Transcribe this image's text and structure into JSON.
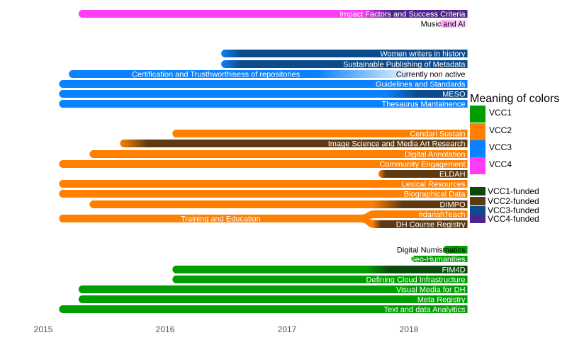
{
  "colors": {
    "VCC1": "#009e00",
    "VCC2": "#ff8000",
    "VCC3": "#0a82ff",
    "VCC4": "#ff3cf5",
    "VCC1-funded": "#0a4a0a",
    "VCC2-funded": "#5e3a12",
    "VCC3-funded": "#0d4c8c",
    "VCC4-funded": "#4b248c"
  },
  "chart_data": {
    "type": "timeline",
    "xlim": [
      2015.0,
      2018.5
    ],
    "x_ticks": [
      "2015",
      "2016",
      "2017",
      "2018"
    ],
    "grid": false,
    "legend": {
      "title": "Meaning of colors",
      "placement": "right",
      "items": [
        "VCC1",
        "VCC2",
        "VCC3",
        "VCC4"
      ],
      "funded_items": [
        "VCC1-funded",
        "VCC2-funded",
        "VCC3-funded",
        "VCC4-funded"
      ]
    },
    "bars": [
      {
        "label": "Impact Factors and Success Criteria",
        "group": "VCC4",
        "start": 2015.29,
        "end": 2018.48,
        "funded_from": 2017.6
      },
      {
        "label": "Music and AI",
        "group": "VCC4",
        "start": 2018.25,
        "end": 2018.48,
        "label_dark": true,
        "faded": true
      },
      {
        "label": "Women writers in history",
        "group": "VCC3",
        "start": 2016.46,
        "end": 2018.48,
        "funded_from": 2016.46
      },
      {
        "label": "Sustainable Publishing of Metadata",
        "group": "VCC3",
        "start": 2016.46,
        "end": 2018.48,
        "funded_from": 2016.46
      },
      {
        "label": "Certification and Trusthworthisess of repositories",
        "group": "VCC3",
        "start": 2015.21,
        "end": 2018.48,
        "fade_from": 2017.25,
        "extra_label": "Currently non active"
      },
      {
        "label": "Guidelines and Standards",
        "group": "VCC3",
        "start": 2015.13,
        "end": 2018.48
      },
      {
        "label": "MESO",
        "group": "VCC3",
        "start": 2015.13,
        "end": 2018.48,
        "funded_from": 2017.8
      },
      {
        "label": "Thesaurus Mantainence",
        "group": "VCC3",
        "start": 2015.13,
        "end": 2018.48
      },
      {
        "label": "Cendari Sustain",
        "group": "VCC2",
        "start": 2016.06,
        "end": 2018.48
      },
      {
        "label": "Image Science and Media Art Research",
        "group": "VCC2",
        "start": 2015.63,
        "end": 2018.48,
        "funded_from": 2015.63
      },
      {
        "label": "Digital Annotation",
        "group": "VCC2",
        "start": 2015.38,
        "end": 2018.48
      },
      {
        "label": "Community Engagement",
        "group": "VCC2",
        "start": 2015.13,
        "end": 2018.48
      },
      {
        "label": "ELDAH",
        "group": "VCC2",
        "start": 2017.75,
        "end": 2018.48,
        "funded_from": 2017.75
      },
      {
        "label": "Lexical Resources",
        "group": "VCC2",
        "start": 2015.13,
        "end": 2018.48
      },
      {
        "label": "Biographical Data",
        "group": "VCC2",
        "start": 2015.13,
        "end": 2018.48
      },
      {
        "label": "DIMPO",
        "group": "VCC2",
        "start": 2015.38,
        "end": 2018.48,
        "funded_from": 2017.7
      },
      {
        "label": "Training and Education",
        "group": "VCC2",
        "start": 2015.13,
        "end": 2017.6,
        "merged": true
      },
      {
        "label": "#dariahTeach",
        "group": "VCC2",
        "start": 2017.6,
        "end": 2018.48,
        "branch": "up"
      },
      {
        "label": "DH Course Registry",
        "group": "VCC2",
        "start": 2017.6,
        "end": 2018.48,
        "branch": "down",
        "funded_from": 2017.7
      },
      {
        "label": "Digital Numismatics",
        "group": "VCC1",
        "start": 2018.28,
        "end": 2018.48,
        "label_dark": true
      },
      {
        "label": "Geo-Humanities",
        "group": "VCC1",
        "start": 2018.02,
        "end": 2018.48,
        "small": true
      },
      {
        "label": "FIM4D",
        "group": "VCC1",
        "start": 2016.06,
        "end": 2018.48,
        "funded_from": 2017.65
      },
      {
        "label": "Defining Cloud Infrastructure",
        "group": "VCC1",
        "start": 2016.06,
        "end": 2018.48
      },
      {
        "label": "Visual Media for DH",
        "group": "VCC1",
        "start": 2015.29,
        "end": 2018.48
      },
      {
        "label": "Meta Registry",
        "group": "VCC1",
        "start": 2015.29,
        "end": 2018.48
      },
      {
        "label": "Text and data Analyitics",
        "group": "VCC1",
        "start": 2015.13,
        "end": 2018.48
      }
    ]
  }
}
